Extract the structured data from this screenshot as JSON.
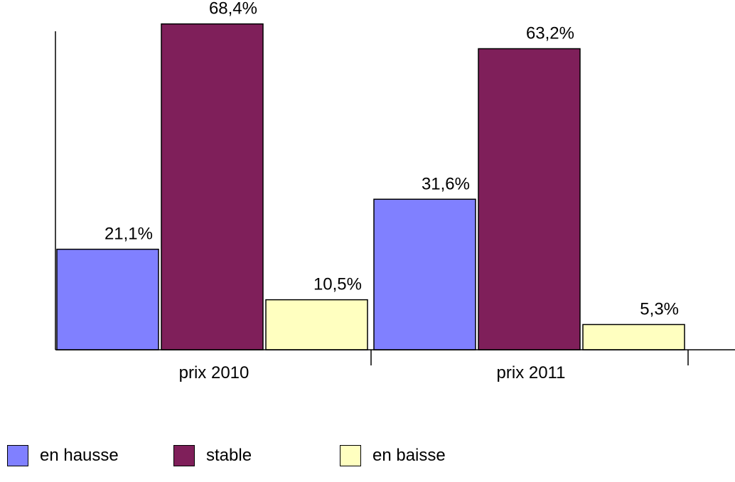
{
  "chart_data": {
    "type": "bar",
    "categories": [
      "prix 2010",
      "prix 2011"
    ],
    "series": [
      {
        "name": "en hausse",
        "values": [
          21.1,
          31.6
        ],
        "labels": [
          "21,1%",
          "31,6%"
        ],
        "color": "#8080ff"
      },
      {
        "name": "stable",
        "values": [
          68.4,
          63.2
        ],
        "labels": [
          "68,4%",
          "63,2%"
        ],
        "color": "#7f1f5a"
      },
      {
        "name": "en baisse",
        "values": [
          10.5,
          5.3
        ],
        "labels": [
          "10,5%",
          "5,3%"
        ],
        "color": "#ffffc0"
      }
    ],
    "ylim": [
      0,
      70
    ],
    "grid": false,
    "legend_position": "bottom",
    "title": "",
    "xlabel": "",
    "ylabel": ""
  }
}
